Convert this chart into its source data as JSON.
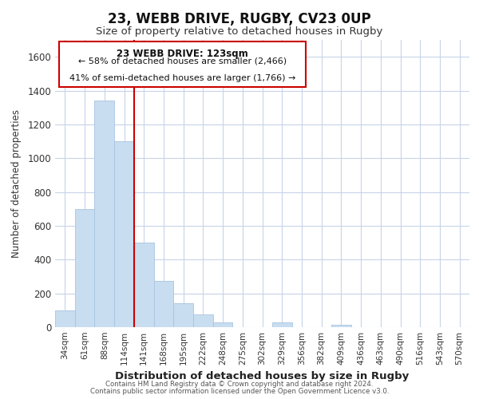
{
  "title": "23, WEBB DRIVE, RUGBY, CV23 0UP",
  "subtitle": "Size of property relative to detached houses in Rugby",
  "xlabel": "Distribution of detached houses by size in Rugby",
  "ylabel": "Number of detached properties",
  "categories": [
    "34sqm",
    "61sqm",
    "88sqm",
    "114sqm",
    "141sqm",
    "168sqm",
    "195sqm",
    "222sqm",
    "248sqm",
    "275sqm",
    "302sqm",
    "329sqm",
    "356sqm",
    "382sqm",
    "409sqm",
    "436sqm",
    "463sqm",
    "490sqm",
    "516sqm",
    "543sqm",
    "570sqm"
  ],
  "values": [
    100,
    700,
    1340,
    1100,
    500,
    275,
    140,
    75,
    30,
    0,
    0,
    30,
    0,
    0,
    15,
    0,
    0,
    0,
    0,
    0,
    0
  ],
  "bar_color": "#c8ddf0",
  "bar_edge_color": "#a8c4e0",
  "vline_x": 3.5,
  "vline_color": "#cc0000",
  "ylim": [
    0,
    1700
  ],
  "yticks": [
    0,
    200,
    400,
    600,
    800,
    1000,
    1200,
    1400,
    1600
  ],
  "annotation_title": "23 WEBB DRIVE: 123sqm",
  "annotation_line1": "← 58% of detached houses are smaller (2,466)",
  "annotation_line2": "41% of semi-detached houses are larger (1,766) →",
  "annotation_box_color": "#ffffff",
  "annotation_box_edge": "#cc0000",
  "footer_line1": "Contains HM Land Registry data © Crown copyright and database right 2024.",
  "footer_line2": "Contains public sector information licensed under the Open Government Licence v3.0.",
  "background_color": "#ffffff",
  "grid_color": "#c8d4e8",
  "title_fontsize": 12,
  "subtitle_fontsize": 9.5
}
